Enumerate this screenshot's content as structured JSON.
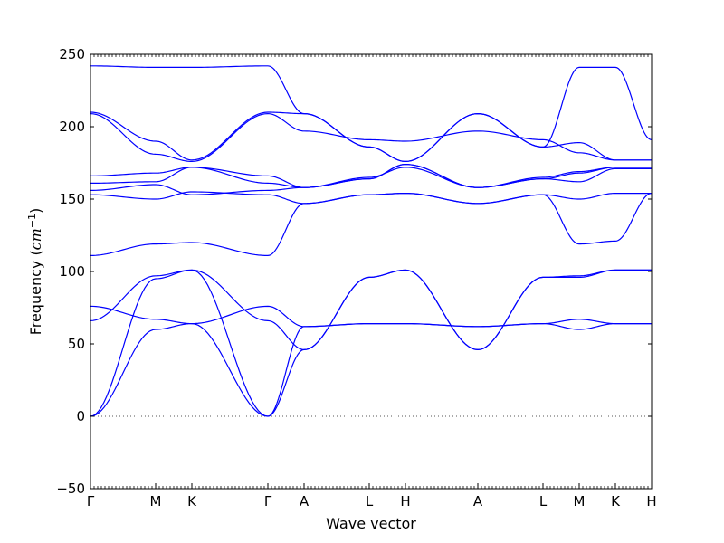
{
  "chart_data": {
    "type": "line",
    "title": "",
    "xlabel": "Wave vector",
    "ylabel": "Frequency (",
    "ylabel_unit": "cm",
    "ylabel_exponent": "−1",
    "ylabel_close": ")",
    "ylim": [
      -50,
      250
    ],
    "yticks": [
      -50,
      0,
      50,
      100,
      150,
      200,
      250
    ],
    "zero_line": {
      "y": 0,
      "style": "dotted",
      "color": "#555555"
    },
    "line_color": "#0000ff",
    "grid": false,
    "legend": "none",
    "xlim": [
      0,
      15.5
    ],
    "high_symmetry_points": [
      {
        "label": "Γ",
        "x": 0
      },
      {
        "label": "M",
        "x": 1.8
      },
      {
        "label": "K",
        "x": 2.8
      },
      {
        "label": "Γ",
        "x": 4.9
      },
      {
        "label": "A",
        "x": 5.9
      },
      {
        "label": "L",
        "x": 7.7
      },
      {
        "label": "H",
        "x": 8.7
      },
      {
        "label": "A",
        "x": 10.7
      },
      {
        "label": "L",
        "x": 12.5
      },
      {
        "label": "M",
        "x": 13.5
      },
      {
        "label": "K",
        "x": 14.5
      },
      {
        "label": "H",
        "x": 15.5
      }
    ],
    "series": [
      {
        "x": [
          0,
          1.8,
          2.8,
          4.9,
          5.9,
          7.7,
          8.7,
          10.7,
          12.5,
          13.5,
          14.5,
          15.5
        ],
        "y": [
          0,
          60,
          64,
          0,
          62,
          64,
          64,
          62,
          64,
          60,
          64,
          64
        ]
      },
      {
        "x": [
          0,
          1.8,
          2.8,
          4.9,
          5.9,
          7.7,
          8.7,
          10.7,
          12.5,
          13.5,
          14.5,
          15.5
        ],
        "y": [
          0,
          95,
          101,
          0,
          46,
          96,
          101,
          46,
          96,
          96,
          101,
          101
        ]
      },
      {
        "x": [
          0,
          1.8,
          2.8,
          4.9,
          5.9,
          7.7,
          8.7,
          10.7,
          12.5,
          13.5,
          14.5,
          15.5
        ],
        "y": [
          66,
          97,
          101,
          66,
          46,
          96,
          101,
          46,
          96,
          97,
          101,
          101
        ]
      },
      {
        "x": [
          0,
          1.8,
          2.8,
          4.9,
          5.9,
          7.7,
          8.7,
          10.7,
          12.5,
          13.5,
          14.5,
          15.5
        ],
        "y": [
          76,
          67,
          64,
          76,
          62,
          64,
          64,
          62,
          64,
          67,
          64,
          64
        ]
      },
      {
        "x": [
          0,
          1.8,
          2.8,
          4.9,
          5.9,
          7.7,
          8.7,
          10.7,
          12.5,
          13.5,
          14.5,
          15.5
        ],
        "y": [
          111,
          119,
          120,
          111,
          147,
          153,
          154,
          147,
          153,
          119,
          121,
          154
        ]
      },
      {
        "x": [
          0,
          1.8,
          2.8,
          4.9,
          5.9,
          7.7,
          8.7,
          10.7,
          12.5,
          13.5,
          14.5,
          15.5
        ],
        "y": [
          153,
          150,
          155,
          153,
          147,
          153,
          154,
          147,
          153,
          150,
          154,
          154
        ]
      },
      {
        "x": [
          0,
          1.8,
          2.8,
          4.9,
          5.9,
          7.7,
          8.7,
          10.7,
          12.5,
          13.5,
          14.5,
          15.5
        ],
        "y": [
          156,
          160,
          153,
          156,
          158,
          164,
          174,
          158,
          164,
          162,
          171,
          171
        ]
      },
      {
        "x": [
          0,
          1.8,
          2.8,
          4.9,
          5.9,
          7.7,
          8.7,
          10.7,
          12.5,
          13.5,
          14.5,
          15.5
        ],
        "y": [
          161,
          162,
          172,
          161,
          158,
          164,
          174,
          158,
          164,
          168,
          172,
          172
        ]
      },
      {
        "x": [
          0,
          1.8,
          2.8,
          4.9,
          5.9,
          7.7,
          8.7,
          10.7,
          12.5,
          13.5,
          14.5,
          15.5
        ],
        "y": [
          166,
          168,
          172,
          166,
          158,
          165,
          172,
          158,
          165,
          169,
          172,
          172
        ]
      },
      {
        "x": [
          0,
          1.8,
          2.8,
          4.9,
          5.9,
          7.7,
          8.7,
          10.7,
          12.5,
          13.5,
          14.5,
          15.5
        ],
        "y": [
          209,
          181,
          176,
          209,
          197,
          191,
          190,
          197,
          191,
          182,
          177,
          177
        ]
      },
      {
        "x": [
          0,
          1.8,
          2.8,
          4.9,
          5.9,
          7.7,
          8.7,
          10.7,
          12.5,
          13.5,
          14.5,
          15.5
        ],
        "y": [
          210,
          190,
          177,
          210,
          209,
          186,
          176,
          209,
          186,
          189,
          177,
          177
        ]
      },
      {
        "x": [
          0,
          1.8,
          2.8,
          4.9,
          5.9,
          7.7,
          8.7,
          10.7,
          12.5,
          13.5,
          14.5,
          15.5
        ],
        "y": [
          242,
          241,
          241,
          242,
          209,
          186,
          176,
          209,
          186,
          241,
          241,
          191
        ]
      }
    ]
  }
}
